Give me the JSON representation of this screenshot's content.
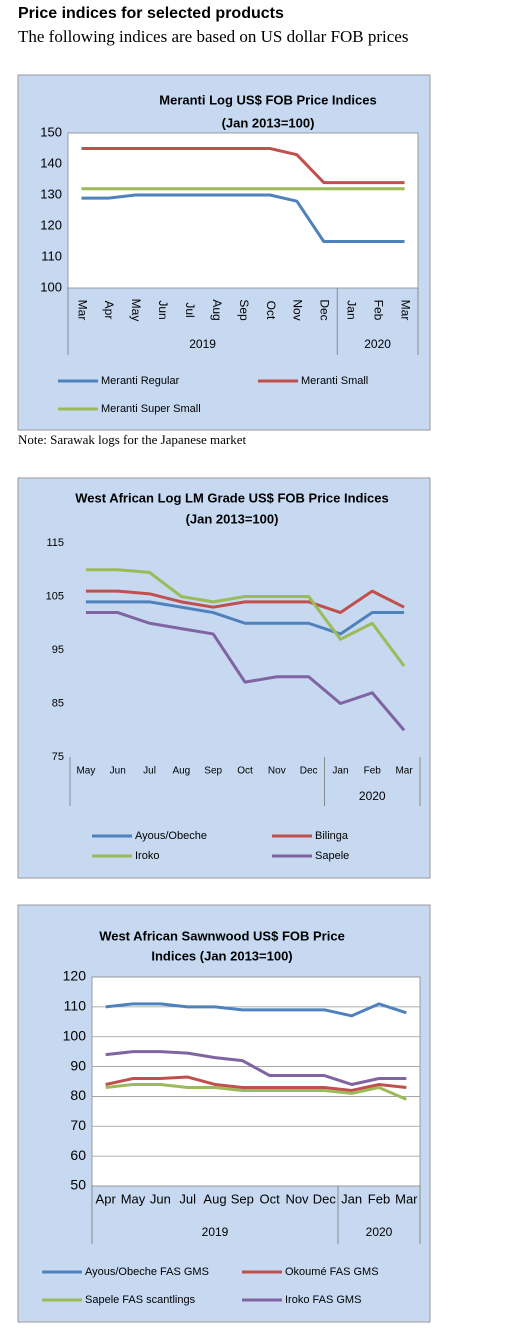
{
  "header": {
    "title": "Price indices for selected products",
    "subtitle": "The following indices are based on US dollar FOB prices"
  },
  "note": "Note: Sarawak logs for the Japanese market",
  "chart_data": [
    {
      "type": "line",
      "title": [
        "Meranti Log US$ FOB Price Indices",
        "(Jan 2013=100)"
      ],
      "categories": [
        "Mar",
        "Apr",
        "May",
        "Jun",
        "Jul",
        "Aug",
        "Sep",
        "Oct",
        "Nov",
        "Dec",
        "Jan",
        "Feb",
        "Mar"
      ],
      "groups": [
        {
          "label": "2019",
          "count": 10
        },
        {
          "label": "2020",
          "count": 3
        }
      ],
      "ylim": [
        100,
        150
      ],
      "yticks": [
        100,
        110,
        120,
        130,
        140,
        150
      ],
      "grid": false,
      "series": [
        {
          "name": "Meranti Regular",
          "color": "#4f81bd",
          "values": [
            129,
            129,
            130,
            130,
            130,
            130,
            130,
            130,
            128,
            115,
            115,
            115,
            115
          ]
        },
        {
          "name": "Meranti Small",
          "color": "#c0504d",
          "values": [
            145,
            145,
            145,
            145,
            145,
            145,
            145,
            145,
            143,
            134,
            134,
            134,
            134
          ]
        },
        {
          "name": "Meranti Super Small",
          "color": "#9bbb59",
          "values": [
            132,
            132,
            132,
            132,
            132,
            132,
            132,
            132,
            132,
            132,
            132,
            132,
            132
          ]
        }
      ]
    },
    {
      "type": "line",
      "title": [
        "West African Log LM Grade US$ FOB Price Indices",
        "(Jan 2013=100)"
      ],
      "categories": [
        "May",
        "Jun",
        "Jul",
        "Aug",
        "Sep",
        "Oct",
        "Nov",
        "Dec",
        "Jan",
        "Feb",
        "Mar"
      ],
      "groups": [
        {
          "label": null,
          "count": 8
        },
        {
          "label": "2020",
          "count": 3
        }
      ],
      "ylim": [
        75,
        115
      ],
      "yticks": [
        75,
        85,
        95,
        105,
        115
      ],
      "grid": false,
      "series": [
        {
          "name": "Ayous/Obeche",
          "color": "#4f81bd",
          "values": [
            104,
            104,
            104,
            103,
            102,
            100,
            100,
            100,
            98,
            102,
            102
          ]
        },
        {
          "name": "Bilinga",
          "color": "#c0504d",
          "values": [
            106,
            106,
            105.5,
            104,
            103,
            104,
            104,
            104,
            102,
            106,
            103
          ]
        },
        {
          "name": "Iroko",
          "color": "#9bbb59",
          "values": [
            110,
            110,
            109.5,
            105,
            104,
            105,
            105,
            105,
            97,
            100,
            92
          ]
        },
        {
          "name": "Sapele",
          "color": "#8064a2",
          "values": [
            102,
            102,
            100,
            99,
            98,
            89,
            90,
            90,
            85,
            87,
            80
          ]
        }
      ]
    },
    {
      "type": "line",
      "title": [
        "West African Sawnwood US$ FOB Price",
        "Indices (Jan 2013=100)"
      ],
      "categories": [
        "Apr",
        "May",
        "Jun",
        "Jul",
        "Aug",
        "Sep",
        "Oct",
        "Nov",
        "Dec",
        "Jan",
        "Feb",
        "Mar"
      ],
      "groups": [
        {
          "label": "2019",
          "count": 9
        },
        {
          "label": "2020",
          "count": 3
        }
      ],
      "ylim": [
        50,
        120
      ],
      "yticks": [
        50,
        60,
        70,
        80,
        90,
        100,
        110,
        120
      ],
      "grid": true,
      "series": [
        {
          "name": "Ayous/Obeche FAS GMS",
          "color": "#4f81bd",
          "values": [
            110,
            111,
            111,
            110,
            110,
            109,
            109,
            109,
            109,
            107,
            111,
            108
          ]
        },
        {
          "name": "Okoumé FAS GMS",
          "color": "#c0504d",
          "values": [
            84,
            86,
            86,
            86.5,
            84,
            83,
            83,
            83,
            83,
            82,
            84,
            83
          ]
        },
        {
          "name": "Sapele FAS scantlings",
          "color": "#9bbb59",
          "values": [
            83,
            84,
            84,
            83,
            83,
            82,
            82,
            82,
            82,
            81,
            83,
            79
          ]
        },
        {
          "name": "Iroko FAS GMS",
          "color": "#8064a2",
          "values": [
            94,
            95,
            95,
            94.5,
            93,
            92,
            87,
            87,
            87,
            84,
            86,
            86
          ]
        }
      ]
    }
  ]
}
